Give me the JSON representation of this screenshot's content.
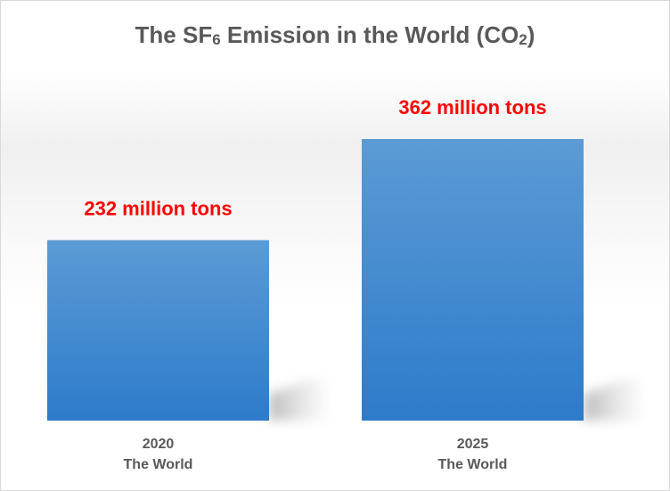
{
  "chart_data": {
    "type": "bar",
    "title": {
      "main": "The SF",
      "sub6": "6",
      "middle": " Emission in the World (CO",
      "sub2": "2",
      "end": ")"
    },
    "categories": [
      {
        "year": "2020",
        "region": "The World"
      },
      {
        "year": "2025",
        "region": "The World"
      }
    ],
    "values": [
      232,
      362
    ],
    "data_labels": [
      "232 million tons",
      "362 million tons"
    ],
    "unit": "million tons",
    "xlabel": "",
    "ylabel": "",
    "grid": false,
    "legend": "none",
    "colors": {
      "bar_top": "#5b9bd5",
      "bar_bottom": "#2e7bcb",
      "data_label": "#ff0000",
      "text": "#595959"
    }
  }
}
